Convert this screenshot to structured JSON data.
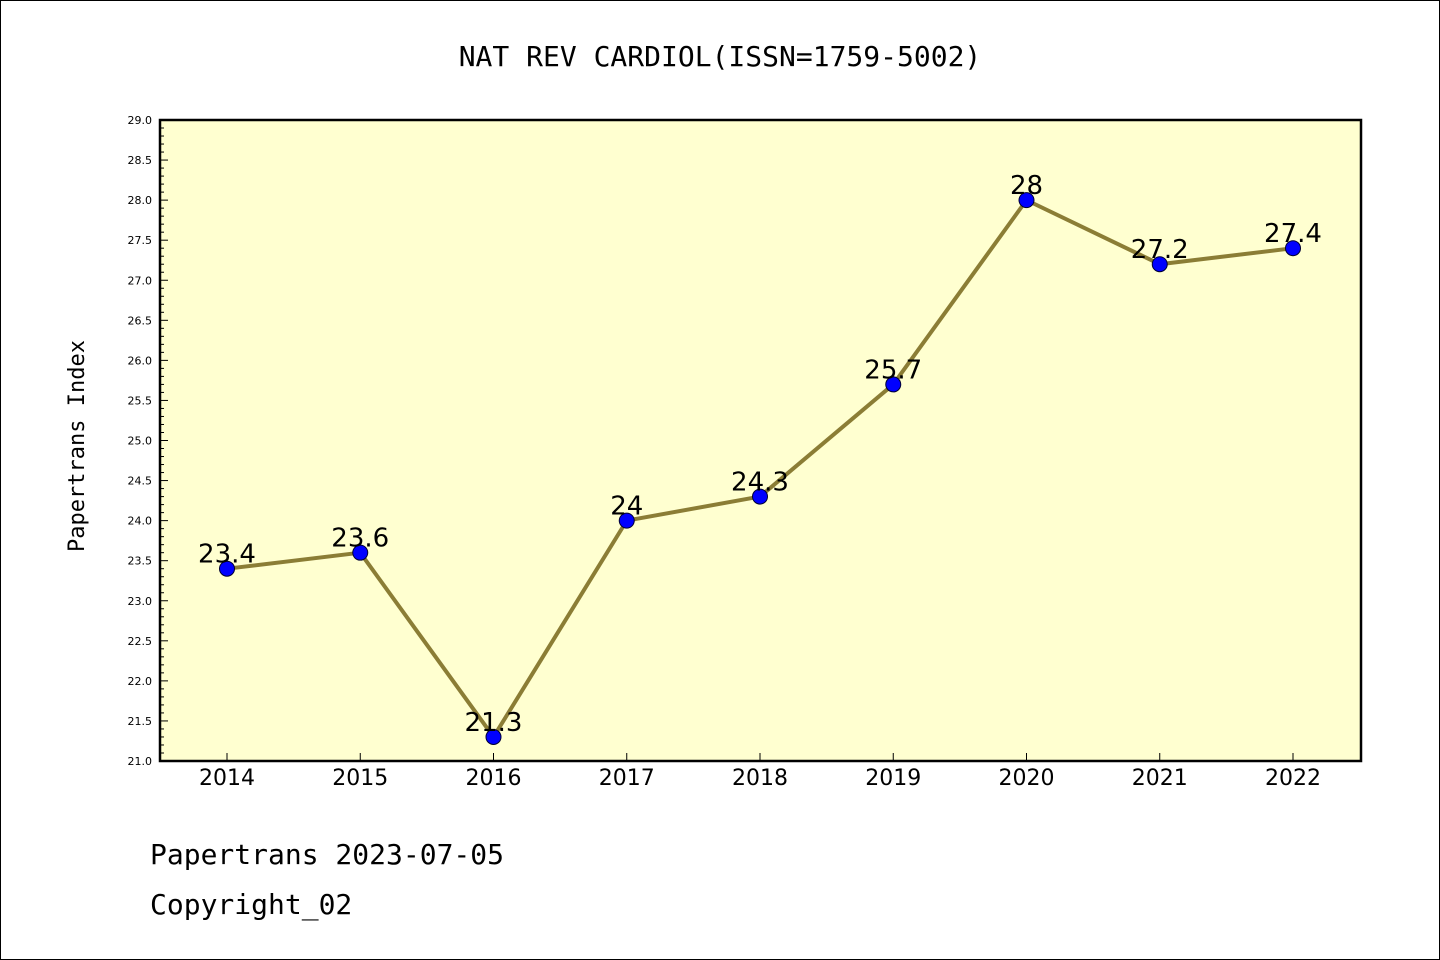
{
  "chart_data": {
    "type": "line",
    "title": "NAT REV CARDIOL(ISSN=1759-5002)",
    "ylabel": "Papertrans Index",
    "xlabel": "",
    "categories": [
      "2014",
      "2015",
      "2016",
      "2017",
      "2018",
      "2019",
      "2020",
      "2021",
      "2022"
    ],
    "values": [
      23.4,
      23.6,
      21.3,
      24.0,
      24.3,
      25.7,
      28.0,
      27.2,
      27.4
    ],
    "data_labels": [
      "23.4",
      "23.6",
      "21.3",
      "24",
      "24.3",
      "25.7",
      "28",
      "27.2",
      "27.4"
    ],
    "ylim": [
      21.0,
      29.0
    ],
    "yticks": [
      "21.0",
      "21.5",
      "22.0",
      "22.5",
      "23.0",
      "23.5",
      "24.0",
      "24.5",
      "25.0",
      "25.5",
      "26.0",
      "26.5",
      "27.0",
      "27.5",
      "28.0",
      "28.5",
      "29.0"
    ],
    "grid": false,
    "legend": "none",
    "colors": {
      "plot_background": "#ffffd0",
      "line": "#8b7d35",
      "marker": "#0000ff"
    }
  },
  "footer": {
    "line1": "Papertrans 2023-07-05",
    "line2": "Copyright_02"
  }
}
